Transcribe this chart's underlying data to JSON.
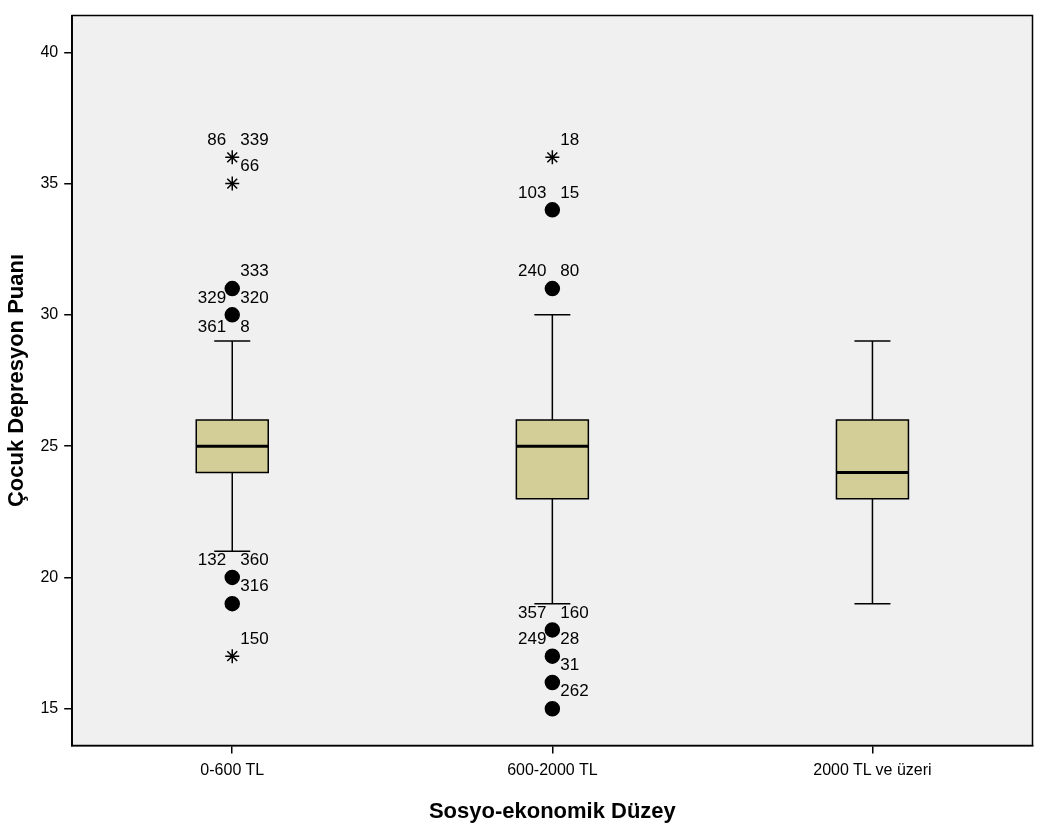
{
  "chart_data": {
    "type": "box",
    "xlabel": "Sosyo-ekonomik Düzey",
    "ylabel": "Çocuk Depresyon Puanı",
    "categories": [
      "0-600 TL",
      "600-2000 TL",
      "2000 TL ve üzeri"
    ],
    "color": "#d3ce97",
    "boxes": [
      {
        "low": 21,
        "q1": 24,
        "median": 25,
        "q3": 26,
        "high": 29,
        "outliers": [
          36,
          35,
          31,
          30,
          20,
          19,
          17
        ]
      },
      {
        "low": 19,
        "q1": 23,
        "median": 25,
        "q3": 26,
        "high": 30,
        "outliers": [
          36,
          34,
          31,
          18,
          17,
          16,
          15
        ]
      },
      {
        "low": 19,
        "q1": 23,
        "median": 24,
        "q3": 26,
        "high": 29
      }
    ],
    "ylim": [
      13.6,
      41.4
    ],
    "yticks": [
      15,
      20,
      25,
      30,
      35,
      40
    ],
    "grid": false,
    "legend": false,
    "annotations": [
      "339",
      "86",
      "66",
      "333",
      "320",
      "329",
      "8",
      "361",
      "360",
      "132",
      "316",
      "150",
      "18",
      "15",
      "103",
      "80",
      "240",
      "160",
      "357",
      "28",
      "249",
      "31",
      "262"
    ]
  }
}
